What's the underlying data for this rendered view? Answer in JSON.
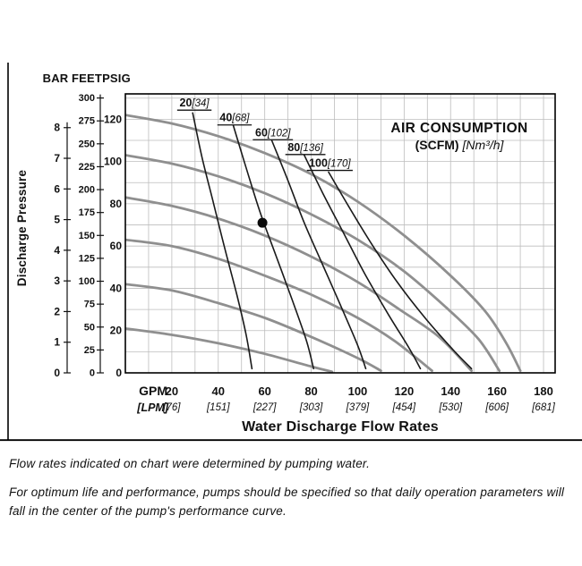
{
  "figure": {
    "footnotes": [
      "Flow rates indicated on chart were determined by pumping water.",
      "For optimum life and performance, pumps should be specified so that daily operation parameters will fall in the center of the pump's performance curve."
    ]
  },
  "chart_data": {
    "type": "line",
    "title": "AIR CONSUMPTION",
    "title_unit_bold": "(SCFM)",
    "title_unit_italic": " [Nm³/h]",
    "xlabel": "Water Discharge Flow Rates",
    "ylabel": "Discharge Pressure",
    "x_unit_primary": "GPM",
    "x_unit_secondary": "[LPM]",
    "x_max_gpm": 185,
    "psig_max": 132,
    "grid_step_gpm": 10,
    "grid_step_psig": 10,
    "grid": true,
    "axes": {
      "bar": {
        "header": "BAR",
        "ticks": [
          8,
          7,
          6,
          5,
          4,
          3,
          2,
          1,
          0
        ],
        "psi_per_unit": 14.5038
      },
      "feet": {
        "header": "FEET",
        "ticks": [
          300,
          275,
          250,
          225,
          200,
          175,
          150,
          125,
          100,
          75,
          50,
          25,
          0
        ],
        "psi_per_unit": 0.43353
      },
      "psig": {
        "header": "PSIG",
        "ticks": [
          120,
          100,
          80,
          60,
          40,
          20,
          0
        ],
        "psi_per_unit": 1
      }
    },
    "x_ticks": [
      {
        "gpm": 20,
        "lpm": "[76]"
      },
      {
        "gpm": 40,
        "lpm": "[151]"
      },
      {
        "gpm": 60,
        "lpm": "[227]"
      },
      {
        "gpm": 80,
        "lpm": "[303]"
      },
      {
        "gpm": 100,
        "lpm": "[379]"
      },
      {
        "gpm": 120,
        "lpm": "[454]"
      },
      {
        "gpm": 140,
        "lpm": "[530]"
      },
      {
        "gpm": 160,
        "lpm": "[606]"
      },
      {
        "gpm": 180,
        "lpm": "[681]"
      }
    ],
    "performance_curves": [
      {
        "head_psig": 120,
        "points": [
          [
            0,
            122
          ],
          [
            20,
            118
          ],
          [
            40,
            112
          ],
          [
            60,
            104
          ],
          [
            80,
            94
          ],
          [
            100,
            81
          ],
          [
            120,
            65
          ],
          [
            140,
            46
          ],
          [
            155,
            29
          ],
          [
            164,
            14
          ],
          [
            170,
            1
          ]
        ]
      },
      {
        "head_psig": 100,
        "points": [
          [
            0,
            103
          ],
          [
            20,
            99
          ],
          [
            40,
            93
          ],
          [
            60,
            85
          ],
          [
            80,
            75
          ],
          [
            100,
            63
          ],
          [
            120,
            48
          ],
          [
            138,
            31
          ],
          [
            152,
            16
          ],
          [
            161,
            1
          ]
        ]
      },
      {
        "head_psig": 80,
        "points": [
          [
            0,
            83
          ],
          [
            20,
            79
          ],
          [
            40,
            73
          ],
          [
            60,
            65
          ],
          [
            80,
            55
          ],
          [
            100,
            43
          ],
          [
            118,
            30
          ],
          [
            135,
            17
          ],
          [
            149,
            1
          ]
        ]
      },
      {
        "head_psig": 60,
        "points": [
          [
            0,
            63
          ],
          [
            20,
            60
          ],
          [
            40,
            54
          ],
          [
            60,
            46
          ],
          [
            80,
            37
          ],
          [
            100,
            26
          ],
          [
            116,
            15
          ],
          [
            132,
            1
          ]
        ]
      },
      {
        "head_psig": 40,
        "points": [
          [
            0,
            42
          ],
          [
            20,
            39
          ],
          [
            40,
            33
          ],
          [
            60,
            26
          ],
          [
            80,
            17
          ],
          [
            100,
            7
          ],
          [
            110,
            1
          ]
        ]
      },
      {
        "head_psig": 20,
        "points": [
          [
            0,
            21
          ],
          [
            20,
            18
          ],
          [
            40,
            14
          ],
          [
            60,
            9
          ],
          [
            80,
            3
          ],
          [
            89,
            0.5
          ]
        ]
      }
    ],
    "air_consumption_curves": [
      {
        "scfm": "20",
        "nm3h": "[34]",
        "label_at": [
          29.7,
          126
        ],
        "points": [
          [
            29,
            123
          ],
          [
            33,
            102
          ],
          [
            38,
            80
          ],
          [
            43,
            58
          ],
          [
            48,
            37
          ],
          [
            52,
            18
          ],
          [
            54.5,
            2
          ]
        ]
      },
      {
        "scfm": "40",
        "nm3h": "[68]",
        "label_at": [
          47,
          119
        ],
        "points": [
          [
            46.5,
            117
          ],
          [
            52,
            97
          ],
          [
            58,
            76
          ],
          [
            65,
            55
          ],
          [
            72,
            34
          ],
          [
            78,
            15
          ],
          [
            81,
            2
          ]
        ]
      },
      {
        "scfm": "60",
        "nm3h": "[102]",
        "label_at": [
          63.5,
          112
        ],
        "points": [
          [
            63,
            110
          ],
          [
            70,
            91
          ],
          [
            77,
            71
          ],
          [
            85,
            51
          ],
          [
            93,
            31
          ],
          [
            100,
            13
          ],
          [
            103.5,
            2
          ]
        ]
      },
      {
        "scfm": "80",
        "nm3h": "[136]",
        "label_at": [
          77.5,
          105
        ],
        "points": [
          [
            77,
            103
          ],
          [
            85,
            85
          ],
          [
            94,
            66
          ],
          [
            103,
            47
          ],
          [
            113,
            28
          ],
          [
            122,
            12
          ],
          [
            127,
            2
          ]
        ]
      },
      {
        "scfm": "100",
        "nm3h": "[170]",
        "label_at": [
          88,
          97.5
        ],
        "points": [
          [
            87.5,
            95
          ],
          [
            96,
            79
          ],
          [
            106,
            61
          ],
          [
            117,
            43
          ],
          [
            129,
            26
          ],
          [
            141,
            11
          ],
          [
            149,
            2
          ]
        ]
      }
    ],
    "operating_point": {
      "gpm": 59,
      "psig": 71
    },
    "colors": {
      "performance_curve": "#8f8f8f",
      "air_curve": "#1a1a1a",
      "grid": "#bdbdbd",
      "border": "#000000",
      "point": "#0a0a0a"
    }
  }
}
